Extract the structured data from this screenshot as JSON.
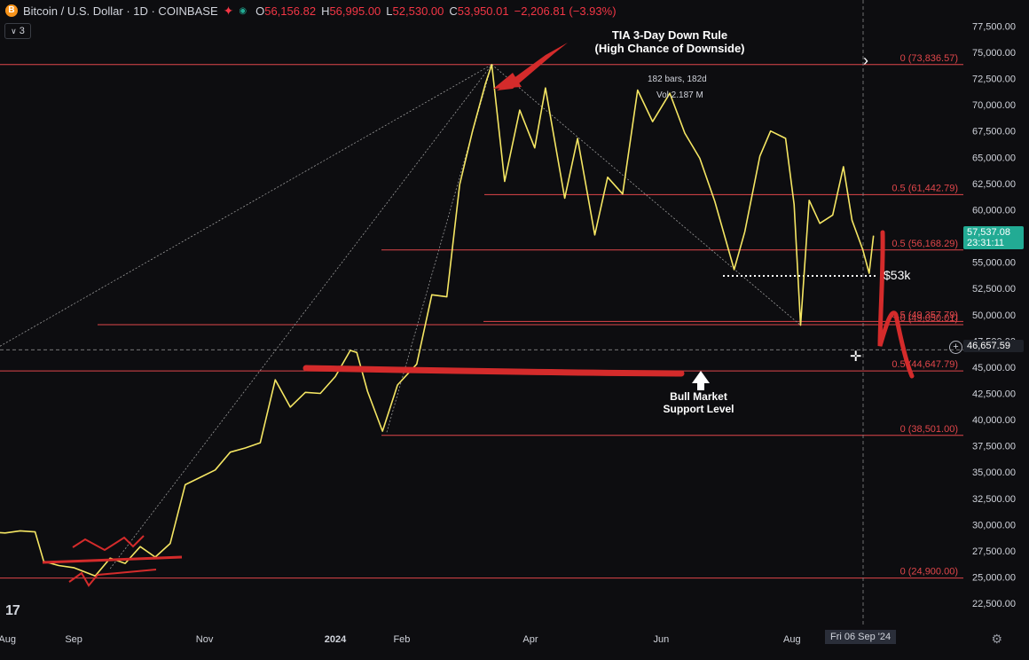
{
  "header": {
    "symbol": "Bitcoin / U.S. Dollar · 1D · COINBASE",
    "coin_glyph": "B",
    "open_label": "O",
    "open": "56,156.82",
    "high_label": "H",
    "high": "56,995.00",
    "low_label": "L",
    "low": "52,530.00",
    "close_label": "C",
    "close": "53,950.01",
    "change": "−2,206.81 (−3.93%)",
    "indicator_count": "3"
  },
  "annotations": {
    "tia_line1": "TIA 3-Day Down Rule",
    "tia_line2": "(High Chance of Downside)",
    "bars_info": "182 bars, 182d",
    "vol_info": "Vol 2.187 M",
    "bull_line1": "Bull Market",
    "bull_line2": "Support Level",
    "level_53k": "$53k"
  },
  "tags": {
    "last_price": "57,537.08",
    "countdown": "23:31:11",
    "crosshair_price": "46,657.59",
    "crosshair_date": "Fri 06 Sep '24"
  },
  "colors": {
    "background": "#0d0d10",
    "price_line": "#f5e663",
    "fib_line": "#e0464a",
    "annotation_red": "#d42b2b",
    "last_price_bg": "#22ab94",
    "text": "#d1d4dc"
  },
  "chart_data": {
    "type": "line",
    "title": "Bitcoin / U.S. Dollar · 1D · COINBASE",
    "xlabel": "",
    "ylabel": "",
    "ylim": [
      20000,
      78500
    ],
    "grid": false,
    "y_ticks": [
      "77,500.00",
      "75,000.00",
      "72,500.00",
      "70,000.00",
      "67,500.00",
      "65,000.00",
      "62,500.00",
      "60,000.00",
      "57,500.00",
      "55,000.00",
      "52,500.00",
      "50,000.00",
      "47,500.00",
      "45,000.00",
      "42,500.00",
      "40,000.00",
      "37,500.00",
      "35,000.00",
      "32,500.00",
      "30,000.00",
      "27,500.00",
      "25,000.00",
      "22,500.00"
    ],
    "y_tick_values": [
      77500,
      75000,
      72500,
      70000,
      67500,
      65000,
      62500,
      60000,
      57500,
      55000,
      52500,
      50000,
      47500,
      45000,
      42500,
      40000,
      37500,
      35000,
      32500,
      30000,
      27500,
      25000,
      22500
    ],
    "x_ticks": [
      {
        "label": "Aug",
        "date": "2023-08-01"
      },
      {
        "label": "Sep",
        "date": "2023-09-01"
      },
      {
        "label": "Nov",
        "date": "2023-11-01"
      },
      {
        "label": "2024",
        "date": "2024-01-01"
      },
      {
        "label": "Feb",
        "date": "2024-02-01"
      },
      {
        "label": "Apr",
        "date": "2024-04-01"
      },
      {
        "label": "Jun",
        "date": "2024-06-01"
      },
      {
        "label": "Aug",
        "date": "2024-08-01"
      }
    ],
    "series": [
      {
        "values": [
          [
            "2023-07-24",
            29300
          ],
          [
            "2023-07-31",
            29200
          ],
          [
            "2023-08-07",
            29400
          ],
          [
            "2023-08-14",
            29300
          ],
          [
            "2023-08-18",
            26500
          ],
          [
            "2023-08-25",
            26100
          ],
          [
            "2023-09-01",
            25900
          ],
          [
            "2023-09-11",
            25100
          ],
          [
            "2023-09-18",
            26800
          ],
          [
            "2023-09-25",
            26300
          ],
          [
            "2023-10-02",
            27900
          ],
          [
            "2023-10-09",
            26900
          ],
          [
            "2023-10-16",
            28200
          ],
          [
            "2023-10-23",
            33800
          ],
          [
            "2023-10-30",
            34500
          ],
          [
            "2023-11-06",
            35200
          ],
          [
            "2023-11-13",
            36900
          ],
          [
            "2023-11-20",
            37300
          ],
          [
            "2023-11-27",
            37800
          ],
          [
            "2023-12-04",
            43800
          ],
          [
            "2023-12-11",
            41200
          ],
          [
            "2023-12-18",
            42600
          ],
          [
            "2023-12-25",
            42500
          ],
          [
            "2024-01-01",
            44100
          ],
          [
            "2024-01-08",
            46600
          ],
          [
            "2024-01-11",
            46400
          ],
          [
            "2024-01-16",
            42700
          ],
          [
            "2024-01-23",
            38900
          ],
          [
            "2024-01-30",
            43300
          ],
          [
            "2024-02-08",
            45300
          ],
          [
            "2024-02-15",
            51900
          ],
          [
            "2024-02-22",
            51700
          ],
          [
            "2024-02-28",
            62400
          ],
          [
            "2024-03-05",
            67500
          ],
          [
            "2024-03-11",
            72000
          ],
          [
            "2024-03-14",
            73836
          ],
          [
            "2024-03-20",
            62700
          ],
          [
            "2024-03-27",
            69500
          ],
          [
            "2024-04-03",
            65900
          ],
          [
            "2024-04-08",
            71600
          ],
          [
            "2024-04-17",
            61100
          ],
          [
            "2024-04-23",
            66800
          ],
          [
            "2024-05-01",
            57600
          ],
          [
            "2024-05-07",
            63100
          ],
          [
            "2024-05-14",
            61500
          ],
          [
            "2024-05-21",
            71400
          ],
          [
            "2024-05-28",
            68400
          ],
          [
            "2024-06-05",
            71100
          ],
          [
            "2024-06-12",
            67300
          ],
          [
            "2024-06-19",
            64900
          ],
          [
            "2024-06-26",
            60800
          ],
          [
            "2024-07-05",
            54300
          ],
          [
            "2024-07-10",
            57900
          ],
          [
            "2024-07-17",
            65100
          ],
          [
            "2024-07-22",
            67500
          ],
          [
            "2024-07-29",
            66800
          ],
          [
            "2024-08-02",
            60500
          ],
          [
            "2024-08-05",
            49000
          ],
          [
            "2024-08-09",
            60900
          ],
          [
            "2024-08-14",
            58700
          ],
          [
            "2024-08-20",
            59500
          ],
          [
            "2024-08-25",
            64100
          ],
          [
            "2024-08-29",
            59000
          ],
          [
            "2024-09-03",
            56200
          ],
          [
            "2024-09-06",
            53950
          ],
          [
            "2024-09-08",
            57537
          ]
        ]
      }
    ],
    "fib_levels": [
      {
        "label": "0 (73,836.57)",
        "value": 73836.57
      },
      {
        "label": "0.5 (61,442.79)",
        "value": 61442.79
      },
      {
        "label": "0.5 (56,168.29)",
        "value": 56168.29
      },
      {
        "label": "0.5 (49,357.79)",
        "value": 49357.79
      },
      {
        "label": "0 (49,050.01)",
        "value": 49050.01
      },
      {
        "label": "0.5 (44,647.79)",
        "value": 44647.79
      },
      {
        "label": "0 (38,501.00)",
        "value": 38501.0
      },
      {
        "label": "0 (24,900.00)",
        "value": 24900.0
      }
    ]
  }
}
